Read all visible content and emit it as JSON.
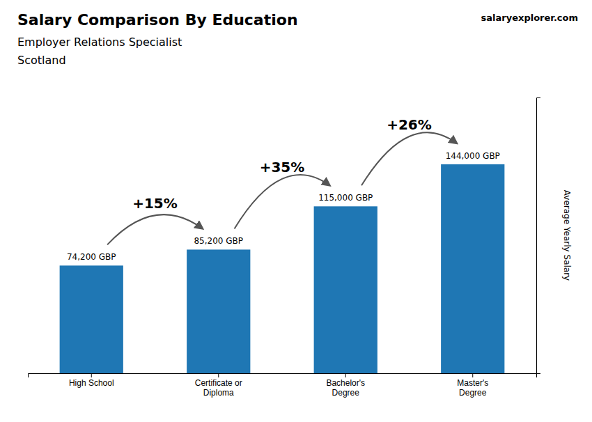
{
  "chart_data": {
    "type": "bar",
    "title": "Salary Comparison By Education",
    "subtitle": "Employer Relations Specialist",
    "location": "Scotland",
    "site": [
      "salary",
      "explorer",
      ".com"
    ],
    "ylabel": "Average Yearly Salary",
    "categories": [
      "High School",
      "Certificate or\nDiploma",
      "Bachelor's\nDegree",
      "Master's\nDegree"
    ],
    "values": [
      74200,
      85200,
      115000,
      144000
    ],
    "value_labels": [
      "74,200 GBP",
      "85,200 GBP",
      "115,000 GBP",
      "144,000 GBP"
    ],
    "data_labels": true,
    "annotations": [
      "+15%",
      "+35%",
      "+26%"
    ],
    "ylim": [
      0,
      190000
    ],
    "tick_labels": "x",
    "grid": false
  }
}
